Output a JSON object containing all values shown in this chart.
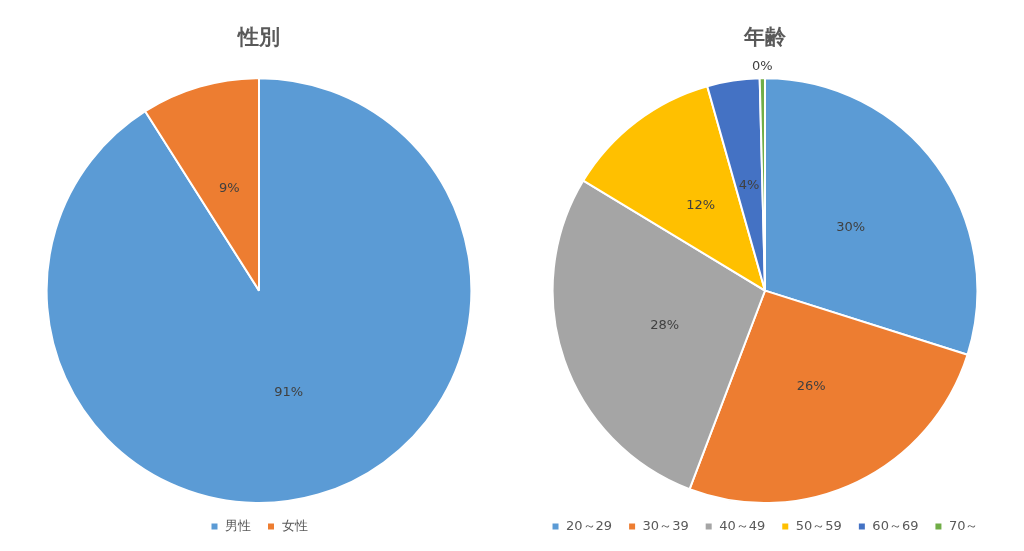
{
  "chart_data": [
    {
      "type": "pie",
      "title": "性別",
      "categories": [
        "男性",
        "女性"
      ],
      "values": [
        91,
        9
      ],
      "value_labels": [
        "91%",
        "9%"
      ],
      "colors": [
        "#5b9bd5",
        "#ed7d31"
      ],
      "legend": "bottom"
    },
    {
      "type": "pie",
      "title": "年齢",
      "categories": [
        "20～29",
        "30～39",
        "40～49",
        "50～59",
        "60～69",
        "70～"
      ],
      "values": [
        30,
        26,
        28,
        12,
        4,
        0.4
      ],
      "value_labels": [
        "30%",
        "26%",
        "28%",
        "12%",
        "4%",
        "0%"
      ],
      "colors": [
        "#5b9bd5",
        "#ed7d31",
        "#a5a5a5",
        "#ffc000",
        "#4472c4",
        "#70ad47"
      ],
      "legend": "bottom"
    }
  ]
}
